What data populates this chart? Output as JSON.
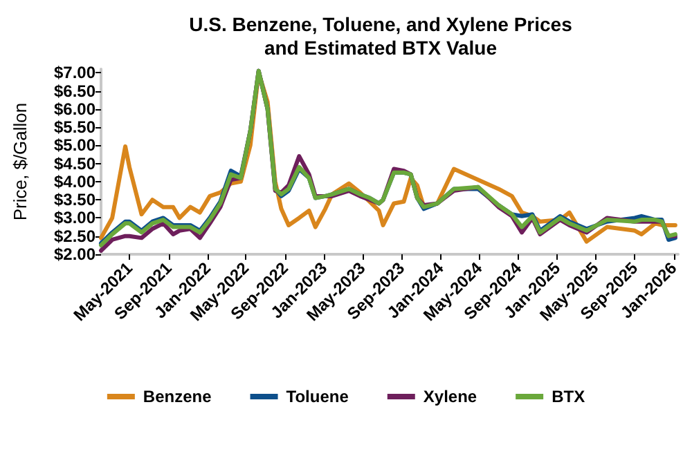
{
  "chart_data": {
    "type": "line",
    "title": "U.S. Benzene, Toluene, and Xylene Prices\nand Estimated BTX Value",
    "ylabel": "Price, $/Gallon",
    "x": [
      "2021-02-01",
      "2021-03-08",
      "2021-04-18",
      "2021-05-01",
      "2021-06-08",
      "2021-07-12",
      "2021-08-15",
      "2021-09-15",
      "2021-10-05",
      "2021-11-08",
      "2021-12-08",
      "2022-01-08",
      "2022-02-10",
      "2022-03-15",
      "2022-04-15",
      "2022-05-15",
      "2022-06-10",
      "2022-07-08",
      "2022-08-01",
      "2022-08-20",
      "2022-09-12",
      "2022-10-15",
      "2022-11-15",
      "2022-12-05",
      "2023-01-05",
      "2023-01-26",
      "2023-03-20",
      "2023-04-24",
      "2023-05-24",
      "2023-06-22",
      "2023-07-05",
      "2023-08-08",
      "2023-09-08",
      "2023-09-30",
      "2023-10-20",
      "2023-11-10",
      "2023-12-22",
      "2024-02-12",
      "2024-04-28",
      "2024-07-01",
      "2024-08-12",
      "2024-09-12",
      "2024-10-15",
      "2024-11-08",
      "2025-01-10",
      "2025-02-08",
      "2025-04-03",
      "2025-06-06",
      "2025-09-01",
      "2025-09-22",
      "2025-11-04",
      "2025-11-25",
      "2025-12-16",
      "2026-01-06"
    ],
    "series": [
      {
        "name": "Benzene",
        "color": "#d9861c",
        "values": [
          2.45,
          3.0,
          4.97,
          4.4,
          3.1,
          3.5,
          3.3,
          3.3,
          3.0,
          3.3,
          3.15,
          3.6,
          3.7,
          3.95,
          4.0,
          5.0,
          7.0,
          6.2,
          4.0,
          3.25,
          2.8,
          3.0,
          3.2,
          2.75,
          3.25,
          3.65,
          3.95,
          3.7,
          3.45,
          3.2,
          2.8,
          3.4,
          3.45,
          4.1,
          3.9,
          3.3,
          3.4,
          4.35,
          4.05,
          3.8,
          3.6,
          3.15,
          3.05,
          2.9,
          2.95,
          3.15,
          2.35,
          2.75,
          2.65,
          2.55,
          2.85,
          2.8,
          2.8,
          2.8
        ]
      },
      {
        "name": "Toluene",
        "color": "#0d4f8b",
        "values": [
          2.3,
          2.6,
          2.9,
          2.9,
          2.65,
          2.9,
          3.0,
          2.8,
          2.8,
          2.8,
          2.65,
          3.0,
          3.45,
          4.3,
          4.15,
          5.4,
          7.05,
          6.0,
          3.8,
          3.6,
          3.75,
          4.35,
          4.1,
          3.55,
          3.6,
          3.65,
          3.8,
          3.65,
          3.55,
          3.4,
          3.5,
          4.25,
          4.25,
          4.2,
          3.55,
          3.25,
          3.4,
          3.8,
          3.8,
          3.35,
          3.1,
          3.05,
          3.1,
          2.65,
          3.05,
          2.9,
          2.7,
          2.9,
          3.0,
          3.05,
          2.95,
          2.95,
          2.4,
          2.45
        ]
      },
      {
        "name": "Xylene",
        "color": "#6e1f5c",
        "values": [
          2.1,
          2.4,
          2.5,
          2.5,
          2.45,
          2.7,
          2.85,
          2.55,
          2.65,
          2.7,
          2.45,
          2.85,
          3.3,
          4.05,
          4.1,
          5.4,
          7.05,
          6.0,
          3.75,
          3.7,
          3.9,
          4.7,
          4.2,
          3.6,
          3.6,
          3.6,
          3.75,
          3.6,
          3.5,
          3.4,
          3.5,
          4.35,
          4.3,
          4.2,
          3.55,
          3.35,
          3.4,
          3.75,
          3.85,
          3.3,
          3.05,
          2.6,
          3.0,
          2.55,
          2.95,
          2.8,
          2.6,
          3.0,
          2.9,
          2.9,
          2.9,
          2.9,
          2.5,
          2.5
        ]
      },
      {
        "name": "BTX",
        "color": "#6aa83b",
        "values": [
          2.25,
          2.55,
          2.85,
          2.85,
          2.6,
          2.85,
          2.95,
          2.75,
          2.75,
          2.75,
          2.6,
          2.95,
          3.4,
          4.2,
          4.1,
          5.4,
          7.05,
          6.0,
          3.8,
          3.65,
          3.8,
          4.4,
          4.1,
          3.55,
          3.6,
          3.65,
          3.8,
          3.65,
          3.55,
          3.4,
          3.5,
          4.25,
          4.25,
          4.2,
          3.55,
          3.3,
          3.4,
          3.8,
          3.85,
          3.35,
          3.1,
          2.75,
          3.05,
          2.6,
          3.0,
          2.85,
          2.65,
          2.95,
          2.9,
          2.95,
          2.95,
          2.9,
          2.5,
          2.55
        ]
      }
    ],
    "xlim": [
      "2021-02-01",
      "2026-01-15"
    ],
    "xticks": [
      {
        "value": "2021-05-01",
        "label": "May-2021"
      },
      {
        "value": "2021-09-01",
        "label": "Sep-2021"
      },
      {
        "value": "2022-01-01",
        "label": "Jan-2022"
      },
      {
        "value": "2022-05-01",
        "label": "May-2022"
      },
      {
        "value": "2022-09-01",
        "label": "Sep-2022"
      },
      {
        "value": "2023-01-01",
        "label": "Jan-2023"
      },
      {
        "value": "2023-05-01",
        "label": "May-2023"
      },
      {
        "value": "2023-09-01",
        "label": "Sep-2023"
      },
      {
        "value": "2024-01-01",
        "label": "Jan-2024"
      },
      {
        "value": "2024-05-01",
        "label": "May-2024"
      },
      {
        "value": "2024-09-01",
        "label": "Sep-2024"
      },
      {
        "value": "2025-01-01",
        "label": "Jan-2025"
      },
      {
        "value": "2025-05-01",
        "label": "May-2025"
      },
      {
        "value": "2025-09-01",
        "label": "Sep-2025"
      },
      {
        "value": "2026-01-01",
        "label": "Jan-2026"
      }
    ],
    "ylim": [
      2,
      7.1
    ],
    "yticks": [
      {
        "value": 2,
        "label": "$2.00"
      },
      {
        "value": 2.5,
        "label": "$2.50"
      },
      {
        "value": 3,
        "label": "$3.00"
      },
      {
        "value": 3.5,
        "label": "$3.50"
      },
      {
        "value": 4,
        "label": "$4.00"
      },
      {
        "value": 4.5,
        "label": "$4.50"
      },
      {
        "value": 5,
        "label": "$5.00"
      },
      {
        "value": 5.5,
        "label": "$5.50"
      },
      {
        "value": 6,
        "label": "$6.00"
      },
      {
        "value": 6.5,
        "label": "$6.50"
      },
      {
        "value": 7,
        "label": "$7.00"
      }
    ],
    "grid": false,
    "legend": "bottom",
    "marker": "none",
    "line_style": "solid"
  }
}
